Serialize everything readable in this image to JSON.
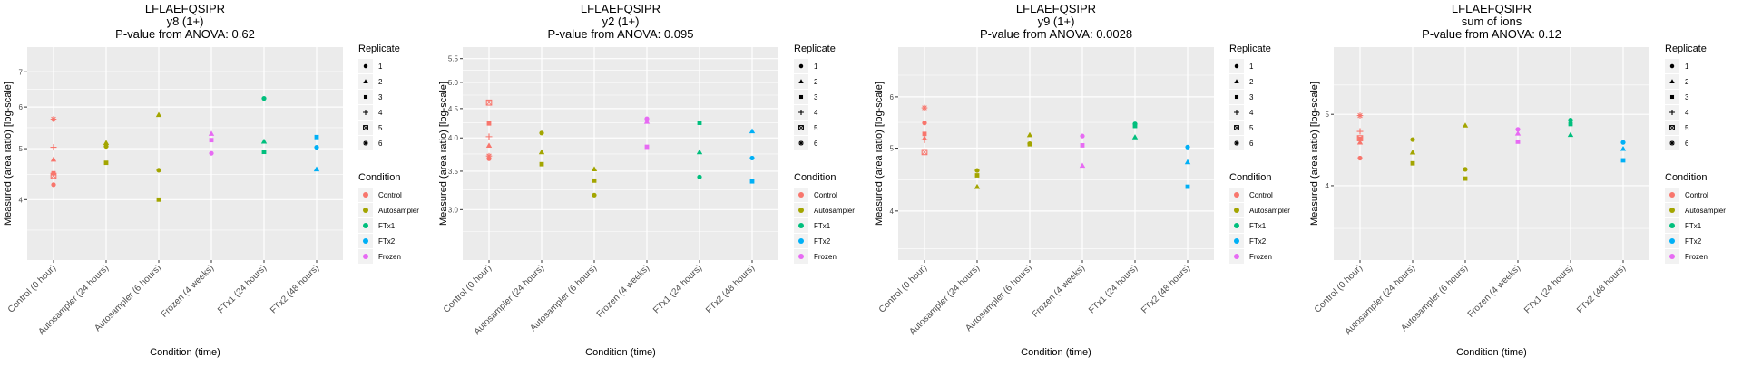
{
  "chart_data": [
    {
      "type": "scatter",
      "title": "LFLAEFQSIPR",
      "subtitle": "y8 (1+)",
      "pvalue_label": "P-value from ANOVA: 0.62",
      "xlabel": "Condition (time)",
      "ylabel": "Measured (area ratio) [log-scale]",
      "yscale": "log",
      "ylim": [
        3.07,
        7.8
      ],
      "yticks": [
        4,
        5,
        6,
        7
      ],
      "ytick_labels": [
        "4",
        "5",
        "6",
        "7"
      ],
      "yminor": [
        3.5,
        4.47,
        5.48,
        6.48
      ],
      "categories": [
        "Control (0 hour)",
        "Autosampler (24 hours)",
        "Autosampler (6 hours)",
        "Frozen (4 weeks)",
        "FTx1 (24 hours)",
        "FTx2 (48 hours)"
      ],
      "points": [
        {
          "x": 0,
          "y": 5.69,
          "replicate": 6,
          "condition": "Control"
        },
        {
          "x": 0,
          "y": 5.03,
          "replicate": 4,
          "condition": "Control"
        },
        {
          "x": 0,
          "y": 4.77,
          "replicate": 2,
          "condition": "Control"
        },
        {
          "x": 0,
          "y": 4.49,
          "replicate": 3,
          "condition": "Control"
        },
        {
          "x": 0,
          "y": 4.44,
          "replicate": 5,
          "condition": "Control"
        },
        {
          "x": 0,
          "y": 4.27,
          "replicate": 1,
          "condition": "Control"
        },
        {
          "x": 1,
          "y": 5.13,
          "replicate": 2,
          "condition": "Autosampler"
        },
        {
          "x": 1,
          "y": 5.05,
          "replicate": 1,
          "condition": "Autosampler"
        },
        {
          "x": 1,
          "y": 4.7,
          "replicate": 3,
          "condition": "Autosampler"
        },
        {
          "x": 2,
          "y": 5.8,
          "replicate": 2,
          "condition": "Autosampler"
        },
        {
          "x": 2,
          "y": 4.55,
          "replicate": 1,
          "condition": "Autosampler"
        },
        {
          "x": 2,
          "y": 4.0,
          "replicate": 3,
          "condition": "Autosampler"
        },
        {
          "x": 3,
          "y": 5.34,
          "replicate": 2,
          "condition": "Frozen"
        },
        {
          "x": 3,
          "y": 5.19,
          "replicate": 3,
          "condition": "Frozen"
        },
        {
          "x": 3,
          "y": 4.9,
          "replicate": 1,
          "condition": "Frozen"
        },
        {
          "x": 4,
          "y": 6.23,
          "replicate": 1,
          "condition": "FTx1"
        },
        {
          "x": 4,
          "y": 5.16,
          "replicate": 2,
          "condition": "FTx1"
        },
        {
          "x": 4,
          "y": 4.93,
          "replicate": 3,
          "condition": "FTx1"
        },
        {
          "x": 5,
          "y": 5.26,
          "replicate": 3,
          "condition": "FTx2"
        },
        {
          "x": 5,
          "y": 5.03,
          "replicate": 1,
          "condition": "FTx2"
        },
        {
          "x": 5,
          "y": 4.57,
          "replicate": 2,
          "condition": "FTx2"
        }
      ]
    },
    {
      "type": "scatter",
      "title": "LFLAEFQSIPR",
      "subtitle": "y2 (1+)",
      "pvalue_label": "P-value from ANOVA: 0.095",
      "xlabel": "Condition (time)",
      "ylabel": "Measured (area ratio) [log-scale]",
      "yscale": "log",
      "ylim": [
        2.45,
        5.76
      ],
      "yticks": [
        3.0,
        3.5,
        4.0,
        4.5,
        5.0,
        5.5
      ],
      "ytick_labels": [
        "3.0",
        "3.5",
        "4.0",
        "4.5",
        "5.0",
        "5.5"
      ],
      "yminor": [
        2.75,
        3.25,
        3.75,
        4.25,
        4.75,
        5.25
      ],
      "categories": [
        "Control (0 hour)",
        "Autosampler (24 hours)",
        "Autosampler (6 hours)",
        "Frozen (4 weeks)",
        "FTx1 (24 hours)",
        "FTx2 (48 hours)"
      ],
      "points": [
        {
          "x": 0,
          "y": 4.61,
          "replicate": 5,
          "condition": "Control"
        },
        {
          "x": 0,
          "y": 4.24,
          "replicate": 3,
          "condition": "Control"
        },
        {
          "x": 0,
          "y": 4.02,
          "replicate": 4,
          "condition": "Control"
        },
        {
          "x": 0,
          "y": 3.88,
          "replicate": 2,
          "condition": "Control"
        },
        {
          "x": 0,
          "y": 3.72,
          "replicate": 6,
          "condition": "Control"
        },
        {
          "x": 0,
          "y": 3.68,
          "replicate": 1,
          "condition": "Control"
        },
        {
          "x": 1,
          "y": 4.08,
          "replicate": 1,
          "condition": "Autosampler"
        },
        {
          "x": 1,
          "y": 3.78,
          "replicate": 2,
          "condition": "Autosampler"
        },
        {
          "x": 1,
          "y": 3.6,
          "replicate": 3,
          "condition": "Autosampler"
        },
        {
          "x": 2,
          "y": 3.53,
          "replicate": 2,
          "condition": "Autosampler"
        },
        {
          "x": 2,
          "y": 3.37,
          "replicate": 3,
          "condition": "Autosampler"
        },
        {
          "x": 2,
          "y": 3.18,
          "replicate": 1,
          "condition": "Autosampler"
        },
        {
          "x": 3,
          "y": 4.32,
          "replicate": 1,
          "condition": "Frozen"
        },
        {
          "x": 3,
          "y": 4.27,
          "replicate": 2,
          "condition": "Frozen"
        },
        {
          "x": 3,
          "y": 3.86,
          "replicate": 3,
          "condition": "Frozen"
        },
        {
          "x": 4,
          "y": 4.25,
          "replicate": 3,
          "condition": "FTx1"
        },
        {
          "x": 4,
          "y": 3.78,
          "replicate": 2,
          "condition": "FTx1"
        },
        {
          "x": 4,
          "y": 3.42,
          "replicate": 1,
          "condition": "FTx1"
        },
        {
          "x": 5,
          "y": 4.11,
          "replicate": 2,
          "condition": "FTx2"
        },
        {
          "x": 5,
          "y": 3.69,
          "replicate": 1,
          "condition": "FTx2"
        },
        {
          "x": 5,
          "y": 3.36,
          "replicate": 3,
          "condition": "FTx2"
        }
      ]
    },
    {
      "type": "scatter",
      "title": "LFLAEFQSIPR",
      "subtitle": "y9 (1+)",
      "pvalue_label": "P-value from ANOVA: 0.0028",
      "xlabel": "Condition (time)",
      "ylabel": "Measured (area ratio) [log-scale]",
      "yscale": "log",
      "ylim": [
        3.36,
        7.16
      ],
      "yticks": [
        4,
        5,
        6
      ],
      "ytick_labels": [
        "4",
        "5",
        "6"
      ],
      "yminor": [
        3.5,
        4.47,
        5.48,
        6.48
      ],
      "categories": [
        "Control (0 hour)",
        "Autosampler (24 hours)",
        "Autosampler (6 hours)",
        "Frozen (4 weeks)",
        "FTx1 (24 hours)",
        "FTx2 (48 hours)"
      ],
      "points": [
        {
          "x": 0,
          "y": 5.77,
          "replicate": 6,
          "condition": "Control"
        },
        {
          "x": 0,
          "y": 5.47,
          "replicate": 1,
          "condition": "Control"
        },
        {
          "x": 0,
          "y": 5.26,
          "replicate": 3,
          "condition": "Control"
        },
        {
          "x": 0,
          "y": 5.18,
          "replicate": 2,
          "condition": "Control"
        },
        {
          "x": 0,
          "y": 5.15,
          "replicate": 4,
          "condition": "Control"
        },
        {
          "x": 0,
          "y": 4.93,
          "replicate": 5,
          "condition": "Control"
        },
        {
          "x": 1,
          "y": 4.62,
          "replicate": 1,
          "condition": "Autosampler"
        },
        {
          "x": 1,
          "y": 4.54,
          "replicate": 3,
          "condition": "Autosampler"
        },
        {
          "x": 1,
          "y": 4.36,
          "replicate": 2,
          "condition": "Autosampler"
        },
        {
          "x": 2,
          "y": 5.24,
          "replicate": 2,
          "condition": "Autosampler"
        },
        {
          "x": 2,
          "y": 5.08,
          "replicate": 1,
          "condition": "Autosampler"
        },
        {
          "x": 2,
          "y": 5.07,
          "replicate": 3,
          "condition": "Autosampler"
        },
        {
          "x": 3,
          "y": 5.22,
          "replicate": 1,
          "condition": "Frozen"
        },
        {
          "x": 3,
          "y": 5.05,
          "replicate": 3,
          "condition": "Frozen"
        },
        {
          "x": 3,
          "y": 4.7,
          "replicate": 2,
          "condition": "Frozen"
        },
        {
          "x": 4,
          "y": 5.45,
          "replicate": 1,
          "condition": "FTx1"
        },
        {
          "x": 4,
          "y": 5.41,
          "replicate": 3,
          "condition": "FTx1"
        },
        {
          "x": 4,
          "y": 5.2,
          "replicate": 2,
          "condition": "FTx1"
        },
        {
          "x": 5,
          "y": 5.02,
          "replicate": 1,
          "condition": "FTx2"
        },
        {
          "x": 5,
          "y": 4.76,
          "replicate": 2,
          "condition": "FTx2"
        },
        {
          "x": 5,
          "y": 4.36,
          "replicate": 3,
          "condition": "FTx2"
        }
      ]
    },
    {
      "type": "scatter",
      "title": "LFLAEFQSIPR",
      "subtitle": "sum of ions",
      "pvalue_label": "P-value from ANOVA: 0.12",
      "xlabel": "Condition (time)",
      "ylabel": "Measured (area ratio) [log-scale]",
      "yscale": "log",
      "ylim": [
        3.17,
        6.17
      ],
      "yticks": [
        4,
        5
      ],
      "ytick_labels": [
        "4",
        "5"
      ],
      "yminor": [
        3.5,
        4.47,
        5.48
      ],
      "categories": [
        "Control (0 hour)",
        "Autosampler (24 hours)",
        "Autosampler (6 hours)",
        "Frozen (4 weeks)",
        "FTx1 (24 hours)",
        "FTx2 (48 hours)"
      ],
      "points": [
        {
          "x": 0,
          "y": 4.98,
          "replicate": 6,
          "condition": "Control"
        },
        {
          "x": 0,
          "y": 4.74,
          "replicate": 4,
          "condition": "Control"
        },
        {
          "x": 0,
          "y": 4.64,
          "replicate": 5,
          "condition": "Control"
        },
        {
          "x": 0,
          "y": 4.63,
          "replicate": 3,
          "condition": "Control"
        },
        {
          "x": 0,
          "y": 4.58,
          "replicate": 2,
          "condition": "Control"
        },
        {
          "x": 0,
          "y": 4.36,
          "replicate": 1,
          "condition": "Control"
        },
        {
          "x": 1,
          "y": 4.62,
          "replicate": 1,
          "condition": "Autosampler"
        },
        {
          "x": 1,
          "y": 4.44,
          "replicate": 2,
          "condition": "Autosampler"
        },
        {
          "x": 1,
          "y": 4.29,
          "replicate": 3,
          "condition": "Autosampler"
        },
        {
          "x": 2,
          "y": 4.83,
          "replicate": 2,
          "condition": "Autosampler"
        },
        {
          "x": 2,
          "y": 4.21,
          "replicate": 1,
          "condition": "Autosampler"
        },
        {
          "x": 2,
          "y": 4.09,
          "replicate": 3,
          "condition": "Autosampler"
        },
        {
          "x": 3,
          "y": 4.77,
          "replicate": 1,
          "condition": "Frozen"
        },
        {
          "x": 3,
          "y": 4.71,
          "replicate": 2,
          "condition": "Frozen"
        },
        {
          "x": 3,
          "y": 4.59,
          "replicate": 3,
          "condition": "Frozen"
        },
        {
          "x": 4,
          "y": 4.91,
          "replicate": 1,
          "condition": "FTx1"
        },
        {
          "x": 4,
          "y": 4.85,
          "replicate": 3,
          "condition": "FTx1"
        },
        {
          "x": 4,
          "y": 4.69,
          "replicate": 2,
          "condition": "FTx1"
        },
        {
          "x": 5,
          "y": 4.58,
          "replicate": 1,
          "condition": "FTx2"
        },
        {
          "x": 5,
          "y": 4.49,
          "replicate": 2,
          "condition": "FTx2"
        },
        {
          "x": 5,
          "y": 4.33,
          "replicate": 3,
          "condition": "FTx2"
        }
      ]
    }
  ],
  "legend": {
    "replicate_title": "Replicate",
    "replicates": [
      {
        "label": "1",
        "shape": "circle"
      },
      {
        "label": "2",
        "shape": "triangle"
      },
      {
        "label": "3",
        "shape": "square"
      },
      {
        "label": "4",
        "shape": "plus"
      },
      {
        "label": "5",
        "shape": "square-cross"
      },
      {
        "label": "6",
        "shape": "asterisk"
      }
    ],
    "condition_title": "Condition",
    "conditions": [
      {
        "label": "Control",
        "color": "#F8766D"
      },
      {
        "label": "Autosampler",
        "color": "#A3A500"
      },
      {
        "label": "FTx1",
        "color": "#00BF7D"
      },
      {
        "label": "FTx2",
        "color": "#00B0F6"
      },
      {
        "label": "Frozen",
        "color": "#E76BF3"
      }
    ]
  },
  "colors": {
    "panel_bg": "#EBEBEB",
    "grid": "#FFFFFF",
    "axis_text": "#4D4D4D",
    "title_text": "#000000"
  }
}
